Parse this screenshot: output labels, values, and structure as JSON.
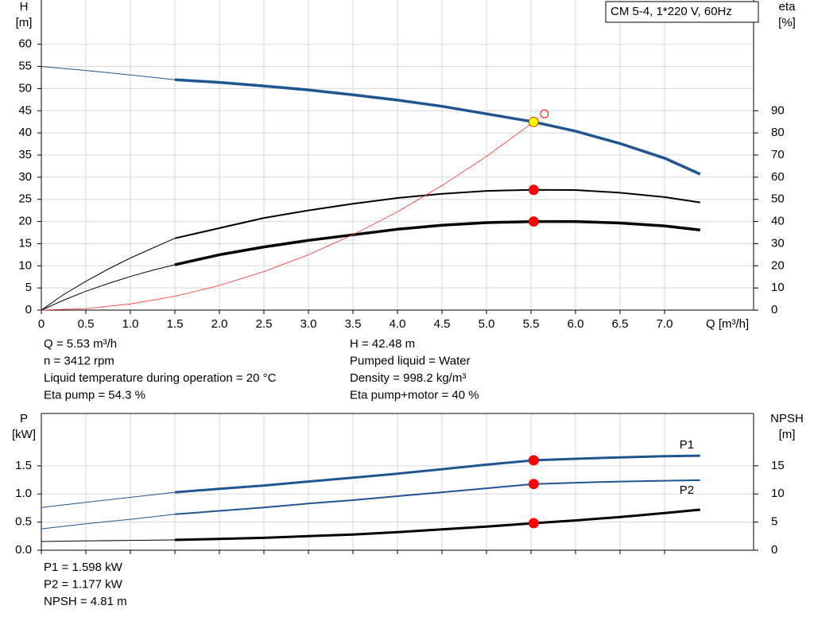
{
  "chart_data": [
    {
      "type": "line",
      "title": "CM 5-4, 1*220 V, 60Hz",
      "y_label": "H",
      "y_unit": "[m]",
      "y2_label": "eta",
      "y2_unit": "[%]",
      "x_label": "Q [m³/h]",
      "xlim": [
        0,
        8
      ],
      "xticks": [
        0,
        0.5,
        {
          "value": 1,
          "label": "1.0"
        },
        1.5,
        {
          "value": 2,
          "label": "2.0"
        },
        2.5,
        {
          "value": 3,
          "label": "3.0"
        },
        3.5,
        {
          "value": 4,
          "label": "4.0"
        },
        4.5,
        {
          "value": 5,
          "label": "5.0"
        },
        5.5,
        {
          "value": 6,
          "label": "6.0"
        },
        6.5,
        {
          "value": 7,
          "label": "7.0"
        }
      ],
      "ylim": [
        0,
        70
      ],
      "yticks": [
        0,
        5,
        10,
        15,
        20,
        25,
        30,
        35,
        40,
        45,
        50,
        55,
        60
      ],
      "y2lim": [
        0,
        140
      ],
      "y2ticks": [
        0,
        10,
        20,
        30,
        40,
        50,
        60,
        70,
        80,
        90
      ],
      "grid": true,
      "series": [
        {
          "color": "#1f5591",
          "linewidth": 1,
          "x": [
            0,
            0.5,
            1,
            1.5
          ],
          "values": [
            55,
            54.1,
            53.1,
            52
          ]
        },
        {
          "color": "#1f5591",
          "linewidth": 3.5,
          "x": [
            1.5,
            2,
            2.5,
            3,
            3.5,
            4,
            4.5,
            5,
            5.53,
            6,
            6.5,
            7,
            7.4
          ],
          "values": [
            52,
            51.4,
            50.6,
            49.7,
            48.6,
            47.4,
            46,
            44.3,
            42.48,
            40.4,
            37.6,
            34.3,
            30.7
          ]
        },
        {
          "color": "#000000",
          "linewidth": 1,
          "axis": "y2",
          "x": [
            0,
            0.25,
            0.5,
            0.75,
            1,
            1.25,
            1.5
          ],
          "values": [
            0,
            7,
            13,
            18.5,
            23.5,
            28,
            32.4
          ]
        },
        {
          "color": "#000000",
          "linewidth": 2,
          "axis": "y2",
          "x": [
            1.5,
            2,
            2.5,
            3,
            3.5,
            4,
            4.5,
            5,
            5.53,
            6,
            6.5,
            7,
            7.4
          ],
          "values": [
            32.4,
            37,
            41.6,
            45,
            48,
            50.6,
            52.5,
            53.8,
            54.3,
            54.2,
            53,
            51,
            48.6
          ]
        },
        {
          "color": "#000000",
          "linewidth": 1,
          "axis": "y2",
          "x": [
            0,
            0.25,
            0.5,
            0.75,
            1,
            1.25,
            1.5
          ],
          "values": [
            0,
            4.5,
            8.5,
            12,
            15.2,
            18,
            20.5
          ]
        },
        {
          "color": "#000000",
          "linewidth": 3.5,
          "axis": "y2",
          "x": [
            1.5,
            2,
            2.5,
            3,
            3.5,
            4,
            4.5,
            5,
            5.53,
            6,
            6.5,
            7,
            7.4
          ],
          "values": [
            20.5,
            25,
            28.5,
            31.5,
            34,
            36.5,
            38.3,
            39.5,
            40,
            40,
            39.3,
            38,
            36.2
          ]
        },
        {
          "color": "#ff2a2a",
          "linewidth": 0.8,
          "x": [
            0,
            0.5,
            1,
            1.5,
            2,
            2.5,
            3,
            3.5,
            4,
            4.5,
            5,
            5.53
          ],
          "values": [
            0,
            0.35,
            1.39,
            3.13,
            5.56,
            8.68,
            12.5,
            17,
            22.2,
            28.1,
            34.7,
            42.48
          ]
        }
      ],
      "points": [
        {
          "x": 5.53,
          "y": 42.48,
          "color": "#ffff00",
          "stroke": "#e03000"
        },
        {
          "x": 5.53,
          "y": 54.3,
          "color": "#ff0000",
          "axis": "y2"
        },
        {
          "x": 5.53,
          "y": 40,
          "color": "#ff0000",
          "axis": "y2"
        },
        {
          "x": 5.65,
          "y": 44.3,
          "color": "none",
          "stroke": "#ff0000"
        }
      ],
      "info_left": [
        "Q = 5.53 m³/h",
        "n = 3412 rpm",
        "Liquid temperature during operation = 20 °C",
        "Eta pump = 54.3 %"
      ],
      "info_right": [
        "H = 42.48 m",
        "Pumped liquid = Water",
        "Density = 998.2 kg/m³",
        "Eta pump+motor = 40 %"
      ]
    },
    {
      "type": "line",
      "y_label": "P",
      "y_unit": "[kW]",
      "y2_label": "NPSH",
      "y2_unit": "[m]",
      "xlim": [
        0,
        8
      ],
      "ylim": [
        0,
        2.43
      ],
      "yticks": [
        {
          "value": 0,
          "label": "0.0"
        },
        0.5,
        {
          "value": 1,
          "label": "1.0"
        },
        1.5
      ],
      "y2lim": [
        0,
        24.3
      ],
      "y2ticks": [
        0,
        5,
        10,
        15
      ],
      "grid": true,
      "series": [
        {
          "color": "#1f5591",
          "linewidth": 1,
          "x": [
            0,
            0.5,
            1,
            1.5
          ],
          "values": [
            0.76,
            0.85,
            0.94,
            1.03
          ]
        },
        {
          "name": "P1",
          "color": "#1f5591",
          "linewidth": 3,
          "x": [
            1.5,
            2,
            2.5,
            3,
            3.5,
            4,
            4.5,
            5,
            5.53,
            6,
            6.5,
            7,
            7.4
          ],
          "values": [
            1.03,
            1.09,
            1.15,
            1.22,
            1.29,
            1.36,
            1.44,
            1.52,
            1.598,
            1.625,
            1.65,
            1.67,
            1.68
          ]
        },
        {
          "color": "#1f5591",
          "linewidth": 1,
          "x": [
            0,
            0.5,
            1,
            1.5
          ],
          "values": [
            0.38,
            0.47,
            0.55,
            0.64
          ]
        },
        {
          "name": "P2",
          "color": "#1f5591",
          "linewidth": 2,
          "x": [
            1.5,
            2,
            2.5,
            3,
            3.5,
            4,
            4.5,
            5,
            5.53,
            6,
            6.5,
            7,
            7.4
          ],
          "values": [
            0.64,
            0.7,
            0.76,
            0.83,
            0.89,
            0.96,
            1.03,
            1.1,
            1.177,
            1.2,
            1.22,
            1.235,
            1.245
          ]
        },
        {
          "color": "#000000",
          "linewidth": 1,
          "axis": "y2",
          "x": [
            0,
            0.5,
            1,
            1.5
          ],
          "values": [
            1.55,
            1.65,
            1.75,
            1.84
          ]
        },
        {
          "color": "#000000",
          "linewidth": 3,
          "axis": "y2",
          "x": [
            1.5,
            2,
            2.5,
            3,
            3.5,
            4,
            4.5,
            5,
            5.53,
            6,
            6.5,
            7,
            7.4
          ],
          "values": [
            1.84,
            2,
            2.2,
            2.5,
            2.8,
            3.2,
            3.7,
            4.2,
            4.81,
            5.3,
            5.9,
            6.6,
            7.2
          ]
        }
      ],
      "points": [
        {
          "x": 5.53,
          "y": 1.598,
          "color": "#ff0000"
        },
        {
          "x": 5.53,
          "y": 1.177,
          "color": "#ff0000"
        },
        {
          "x": 5.53,
          "y": 4.81,
          "color": "#ff0000",
          "axis": "y2"
        }
      ],
      "info": [
        "P1 = 1.598 kW",
        "P2 = 1.177 kW",
        "NPSH = 4.81 m"
      ]
    }
  ]
}
